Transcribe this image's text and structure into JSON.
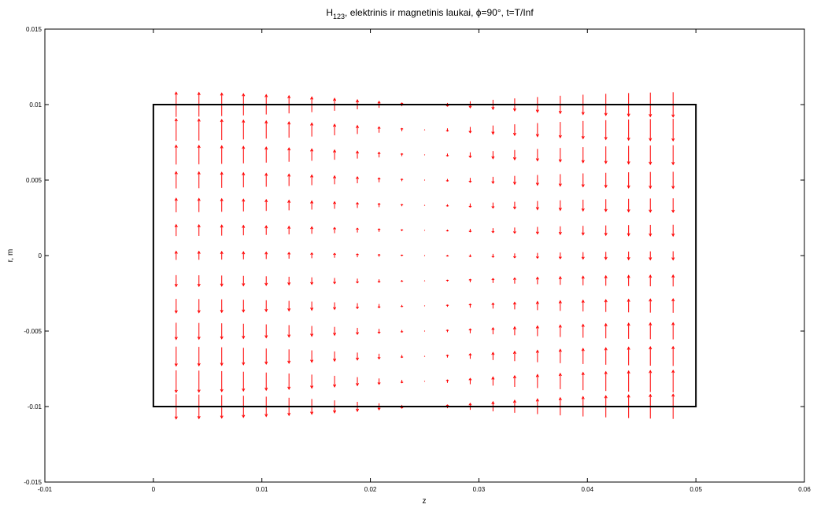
{
  "chart_data": {
    "type": "quiver",
    "title": {
      "main": "H",
      "sub": "123",
      "rest": ", elektrinis ir magnetinis laukai, ",
      "phi_symbol": "ϕ",
      "rest2": "=90°, t=T/Inf"
    },
    "xlabel": "z",
    "ylabel": "r, m",
    "xlim": [
      -0.01,
      0.06
    ],
    "ylim": [
      -0.015,
      0.015
    ],
    "xticks": [
      -0.01,
      0,
      0.01,
      0.02,
      0.03,
      0.04,
      0.05,
      0.06
    ],
    "xtick_labels": [
      "-0.01",
      "0",
      "0.01",
      "0.02",
      "0.03",
      "0.04",
      "0.05",
      "0.06"
    ],
    "yticks": [
      -0.015,
      -0.01,
      -0.005,
      0,
      0.005,
      0.01,
      0.015
    ],
    "ytick_labels": [
      "-0.015",
      "-0.01",
      "-0.005",
      "0",
      "0.005",
      "0.01",
      "0.015"
    ],
    "grid": false,
    "boundary": {
      "z": [
        0,
        0.05
      ],
      "r": [
        -0.01,
        0.01
      ],
      "color": "#000000"
    },
    "field": {
      "color": "#ff0000",
      "z_columns": [
        0.0021,
        0.0042,
        0.0063,
        0.0083,
        0.0104,
        0.0125,
        0.0146,
        0.0167,
        0.0188,
        0.0208,
        0.0229,
        0.025,
        0.0271,
        0.0292,
        0.0313,
        0.0333,
        0.0354,
        0.0375,
        0.0396,
        0.0417,
        0.0438,
        0.0458,
        0.0479
      ],
      "r_samples": [
        0.01,
        0.00833,
        0.00667,
        0.005,
        0.00333,
        0.00167,
        0,
        -0.00167,
        -0.00333,
        -0.005,
        -0.00667,
        -0.00833,
        -0.01
      ],
      "magnitude_scale": 0.00165
    }
  }
}
